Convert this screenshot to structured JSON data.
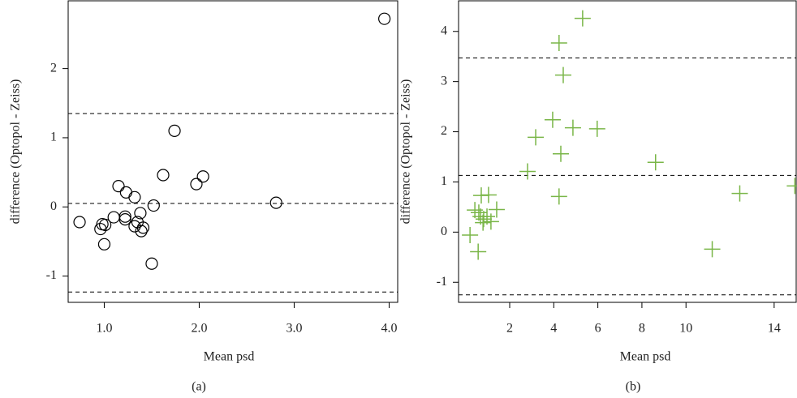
{
  "chart_data": [
    {
      "type": "scatter",
      "caption": "(a)",
      "x_label": "Mean psd",
      "y_label": "difference (Optopol - Zeiss)",
      "marker": "circle",
      "color": "#000000",
      "xlim": [
        0.62,
        4.09
      ],
      "ylim": [
        -1.38,
        2.98
      ],
      "xticks": [
        {
          "value": 1,
          "label": "1.0"
        },
        {
          "value": 2,
          "label": "2.0"
        },
        {
          "value": 3,
          "label": "3.0"
        },
        {
          "value": 4,
          "label": "4.0"
        }
      ],
      "yticks": [
        -1,
        0,
        1,
        2
      ],
      "hlines": [
        1.35,
        0.05,
        -1.23
      ],
      "x": [
        3.95,
        1.74,
        1.62,
        2.04,
        1.97,
        1.15,
        1.23,
        1.32,
        2.81,
        1.52,
        0.74,
        1.35,
        1.22,
        1.1,
        1.32,
        0.98,
        0.96,
        1.01,
        1.0,
        1.5,
        1.38,
        1.39,
        1.41,
        1.22
      ],
      "y": [
        2.72,
        1.1,
        0.46,
        0.44,
        0.33,
        0.3,
        0.21,
        0.14,
        0.06,
        0.02,
        -0.22,
        -0.22,
        -0.14,
        -0.15,
        -0.28,
        -0.25,
        -0.32,
        -0.26,
        -0.54,
        -0.82,
        -0.09,
        -0.35,
        -0.3,
        -0.18
      ]
    },
    {
      "type": "scatter",
      "caption": "(b)",
      "x_label": "Mean psd",
      "y_label": "difference (Optopol - Zeiss)",
      "marker": "plus",
      "color": "#7ab648",
      "xlim": [
        -0.32,
        15.0
      ],
      "ylim": [
        -1.4,
        4.61
      ],
      "xticks": [
        2,
        4,
        6,
        8,
        10,
        14
      ],
      "yticks": [
        -1,
        0,
        1,
        2,
        3,
        4
      ],
      "hlines": [
        3.47,
        1.13,
        -1.25
      ],
      "x": [
        0.2,
        0.57,
        0.42,
        0.6,
        0.68,
        0.71,
        0.82,
        0.97,
        1.15,
        1.04,
        1.41,
        0.79,
        2.81,
        3.18,
        3.95,
        4.24,
        4.43,
        4.32,
        4.87,
        5.31,
        5.97,
        4.24,
        8.62,
        11.19,
        12.44,
        14.94
      ],
      "y": [
        -0.06,
        -0.39,
        0.44,
        0.39,
        0.31,
        0.73,
        0.26,
        0.31,
        0.21,
        0.74,
        0.45,
        0.19,
        1.21,
        1.89,
        2.24,
        3.77,
        3.13,
        1.56,
        2.08,
        4.26,
        2.06,
        0.71,
        1.39,
        -0.34,
        0.77,
        0.92
      ]
    }
  ]
}
